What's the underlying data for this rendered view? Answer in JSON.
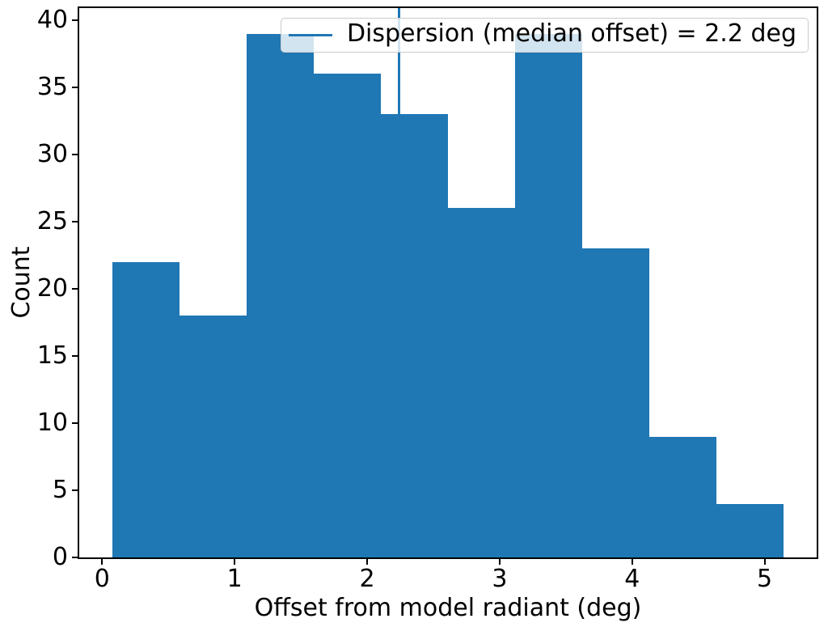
{
  "colors": {
    "bar": "#1f77b4",
    "vline": "#1f77b4",
    "legend_border": "#cccccc",
    "spine": "#000000"
  },
  "legend": {
    "label": "Dispersion (median offset) = 2.2 deg"
  },
  "chart_data": {
    "type": "histogram",
    "title": "",
    "xlabel": "Offset from model radiant (deg)",
    "ylabel": "Count",
    "bin_edges": [
      0.08,
      0.586,
      1.092,
      1.598,
      2.104,
      2.61,
      3.116,
      3.622,
      4.128,
      4.634,
      5.14
    ],
    "counts": [
      22,
      18,
      39,
      36,
      33,
      26,
      39,
      23,
      9,
      4
    ],
    "vline": {
      "x": 2.24,
      "label": "Dispersion (median offset) = 2.2 deg"
    },
    "xlim": [
      -0.173,
      5.393
    ],
    "ylim": [
      0,
      40.9
    ],
    "x_ticks": [
      0,
      1,
      2,
      3,
      4,
      5
    ],
    "y_ticks": [
      0,
      5,
      10,
      15,
      20,
      25,
      30,
      35,
      40
    ],
    "legend_position": "upper right",
    "grid": false
  }
}
